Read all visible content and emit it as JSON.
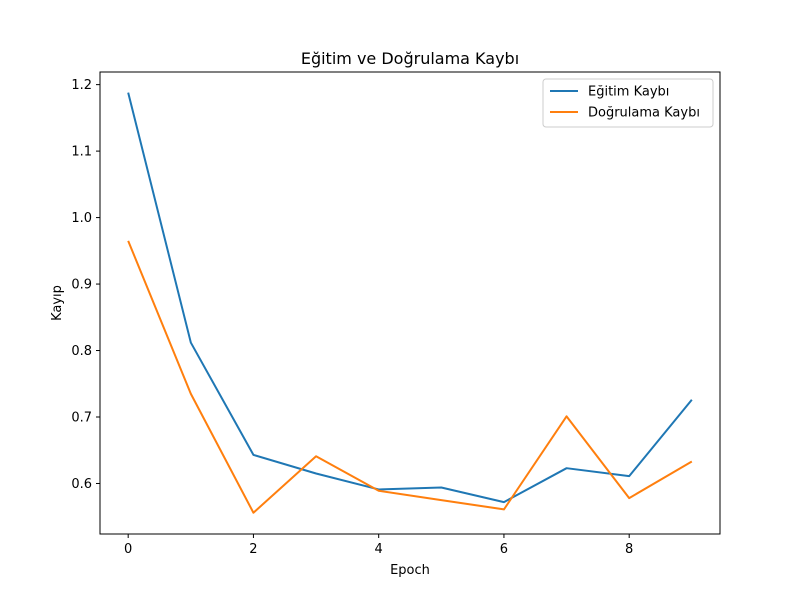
{
  "chart_data": {
    "type": "line",
    "title": "Eğitim ve Doğrulama Kaybı",
    "xlabel": "Epoch",
    "ylabel": "Kayıp",
    "xlim": [
      -0.45,
      9.45
    ],
    "ylim": [
      0.524,
      1.219
    ],
    "grid": false,
    "legend_position": "top-right",
    "x": [
      0,
      1,
      2,
      3,
      4,
      5,
      6,
      7,
      8,
      9
    ],
    "x_ticks": [
      0,
      2,
      4,
      6,
      8
    ],
    "x_tick_labels": [
      "0",
      "2",
      "4",
      "6",
      "8"
    ],
    "y_ticks": [
      0.6,
      0.7,
      0.8,
      0.9,
      1.0,
      1.1,
      1.2
    ],
    "y_tick_labels": [
      "0.6",
      "0.7",
      "0.8",
      "0.9",
      "1.0",
      "1.1",
      "1.2"
    ],
    "series": [
      {
        "name": "Eğitim Kaybı",
        "color": "#1f77b4",
        "values": [
          1.188,
          0.812,
          0.643,
          0.615,
          0.591,
          0.594,
          0.572,
          0.623,
          0.611,
          0.726
        ]
      },
      {
        "name": "Doğrulama Kaybı",
        "color": "#ff7f0e",
        "values": [
          0.965,
          0.735,
          0.556,
          0.641,
          0.589,
          0.575,
          0.561,
          0.701,
          0.578,
          0.633
        ]
      }
    ]
  }
}
